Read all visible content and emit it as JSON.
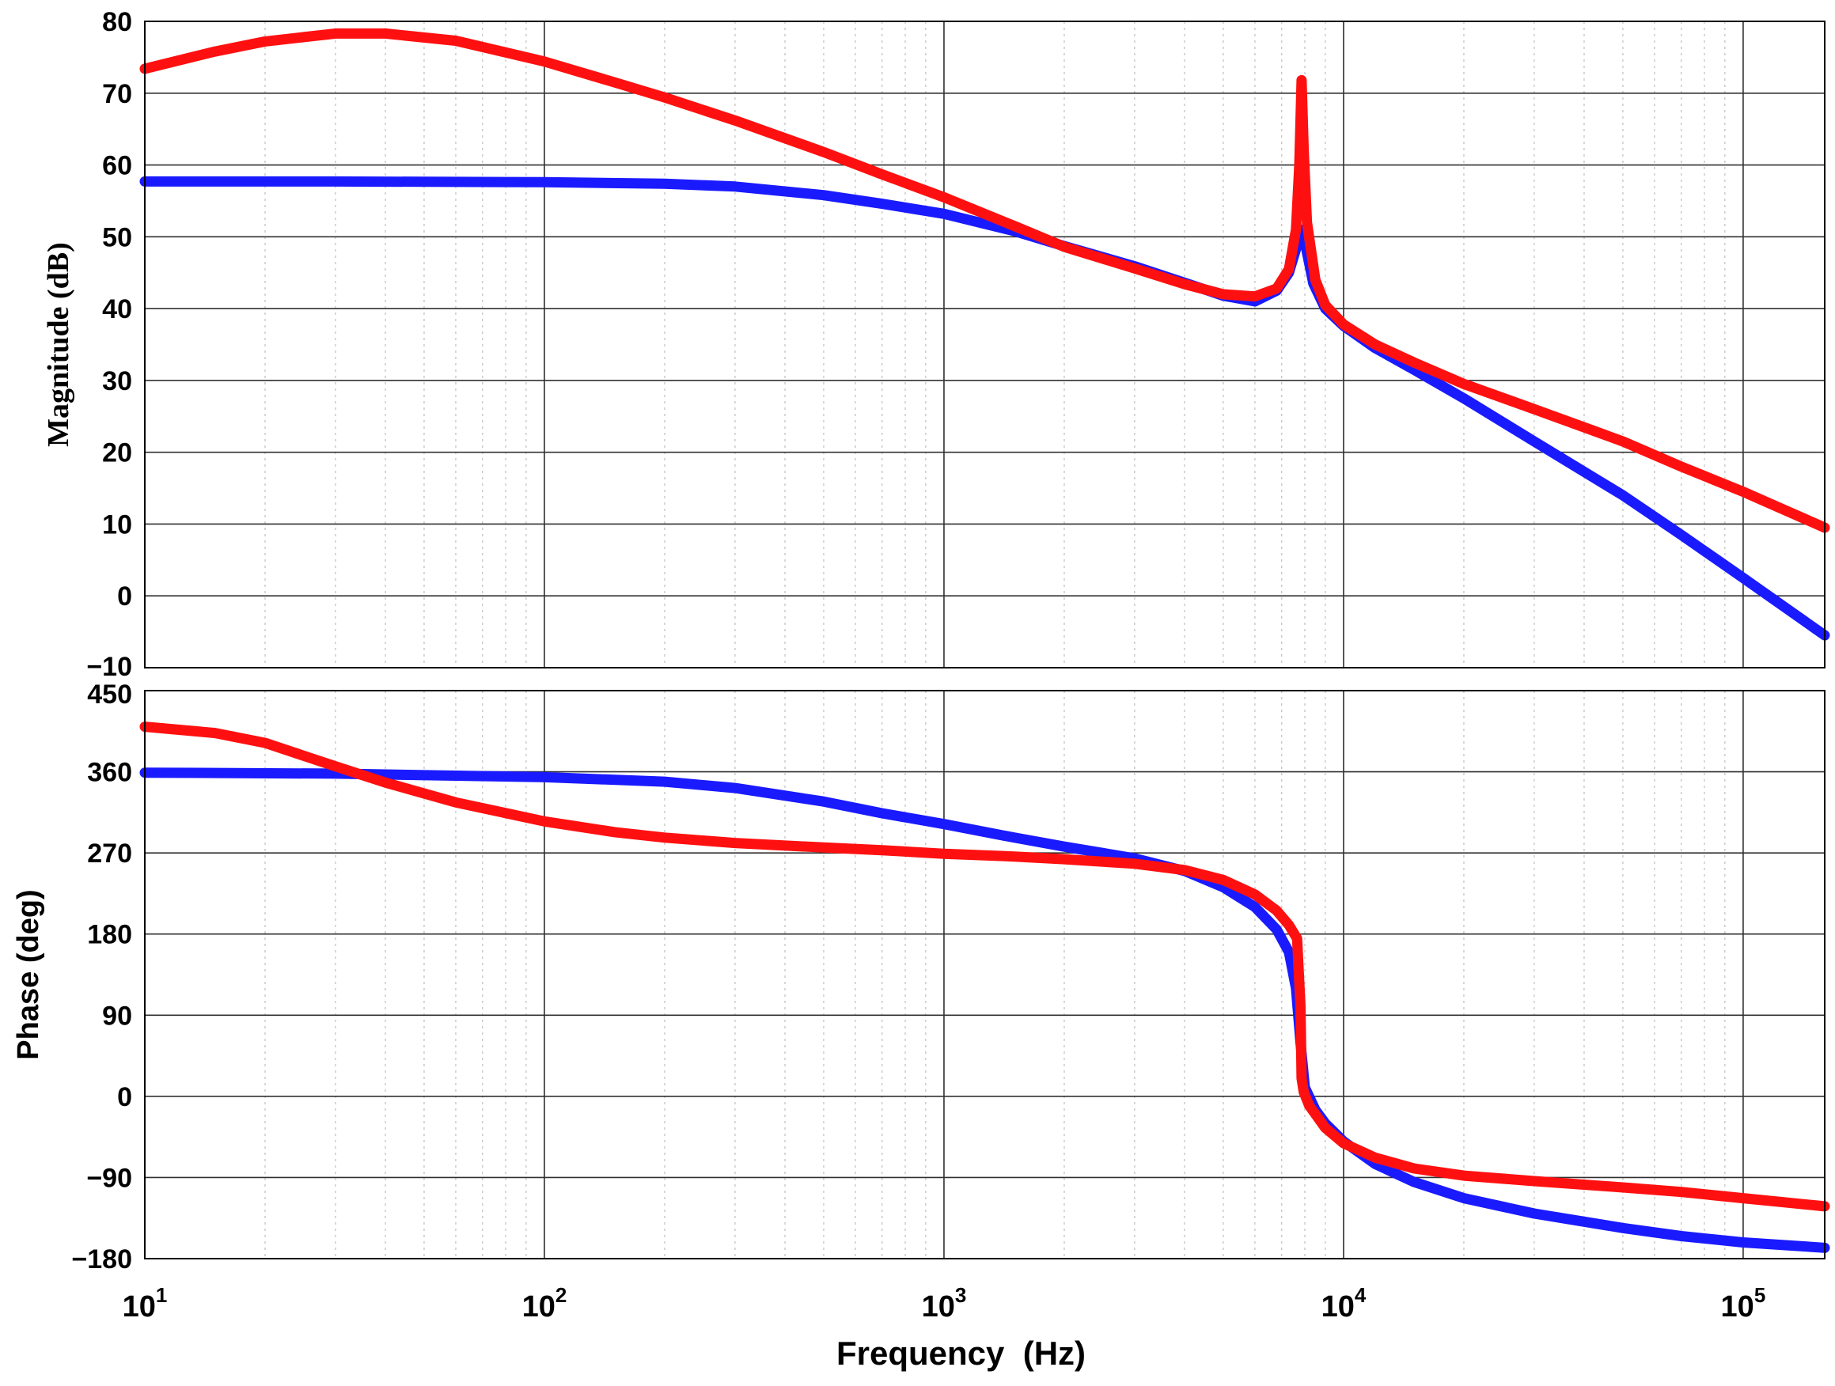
{
  "chart_data": [
    {
      "type": "line",
      "panel": "magnitude",
      "title": "",
      "xlabel": "",
      "ylabel": "Magnitude (dB)",
      "xscale": "log",
      "xlim": [
        10,
        160000
      ],
      "ylim": [
        -10,
        80
      ],
      "yticks": [
        "80",
        "70",
        "60",
        "50",
        "40",
        "30",
        "20",
        "10",
        "0",
        "−10"
      ],
      "ytick_values": [
        80,
        70,
        60,
        50,
        40,
        30,
        20,
        10,
        0,
        -10
      ],
      "grid": true,
      "series": [
        {
          "color": "#1a1aff",
          "points": [
            [
              10,
              57.7
            ],
            [
              30,
              57.7
            ],
            [
              100,
              57.6
            ],
            [
              200,
              57.4
            ],
            [
              300,
              57.0
            ],
            [
              500,
              55.8
            ],
            [
              700,
              54.6
            ],
            [
              1000,
              53.2
            ],
            [
              1500,
              50.8
            ],
            [
              2000,
              48.7
            ],
            [
              3000,
              45.9
            ],
            [
              4000,
              43.6
            ],
            [
              5000,
              41.8
            ],
            [
              6000,
              41.0
            ],
            [
              6800,
              42.5
            ],
            [
              7300,
              45.0
            ],
            [
              7650,
              48.8
            ],
            [
              7850,
              51.0
            ],
            [
              8050,
              48.5
            ],
            [
              8400,
              43.5
            ],
            [
              9000,
              40.0
            ],
            [
              10000,
              37.6
            ],
            [
              12000,
              34.5
            ],
            [
              15000,
              31.5
            ],
            [
              20000,
              27.5
            ],
            [
              30000,
              21.5
            ],
            [
              50000,
              14.0
            ],
            [
              70000,
              8.5
            ],
            [
              100000,
              2.5
            ],
            [
              160000,
              -5.5
            ]
          ]
        },
        {
          "color": "#ff1010",
          "points": [
            [
              10,
              73.4
            ],
            [
              15,
              75.8
            ],
            [
              20,
              77.2
            ],
            [
              30,
              78.3
            ],
            [
              40,
              78.3
            ],
            [
              60,
              77.3
            ],
            [
              100,
              74.4
            ],
            [
              150,
              71.5
            ],
            [
              200,
              69.4
            ],
            [
              300,
              66.2
            ],
            [
              500,
              61.8
            ],
            [
              700,
              58.7
            ],
            [
              1000,
              55.5
            ],
            [
              1500,
              51.5
            ],
            [
              2000,
              48.6
            ],
            [
              3000,
              45.6
            ],
            [
              4000,
              43.4
            ],
            [
              5000,
              42.0
            ],
            [
              6000,
              41.7
            ],
            [
              6800,
              42.8
            ],
            [
              7300,
              45.5
            ],
            [
              7600,
              51.0
            ],
            [
              7750,
              60.0
            ],
            [
              7850,
              71.8
            ],
            [
              7950,
              62.0
            ],
            [
              8100,
              52.0
            ],
            [
              8500,
              44.0
            ],
            [
              9000,
              40.5
            ],
            [
              10000,
              37.8
            ],
            [
              12000,
              35.0
            ],
            [
              15000,
              32.5
            ],
            [
              20000,
              29.5
            ],
            [
              30000,
              26.0
            ],
            [
              50000,
              21.5
            ],
            [
              70000,
              18.0
            ],
            [
              100000,
              14.5
            ],
            [
              160000,
              9.5
            ]
          ]
        }
      ]
    },
    {
      "type": "line",
      "panel": "phase",
      "title": "",
      "xlabel": "Frequency  (Hz)",
      "ylabel": "Phase (deg)",
      "xscale": "log",
      "xlim": [
        10,
        160000
      ],
      "ylim": [
        -180,
        450
      ],
      "yticks": [
        "450",
        "360",
        "270",
        "180",
        "90",
        "0",
        "−90",
        "−180"
      ],
      "ytick_values": [
        450,
        360,
        270,
        180,
        90,
        0,
        -90,
        -180
      ],
      "xticks": [
        {
          "base": "10",
          "exp": "1",
          "value": 10
        },
        {
          "base": "10",
          "exp": "2",
          "value": 100
        },
        {
          "base": "10",
          "exp": "3",
          "value": 1000
        },
        {
          "base": "10",
          "exp": "4",
          "value": 10000
        },
        {
          "base": "10",
          "exp": "5",
          "value": 100000
        }
      ],
      "grid": true,
      "series": [
        {
          "color": "#1a1aff",
          "points": [
            [
              10,
              359
            ],
            [
              30,
              358
            ],
            [
              100,
              354
            ],
            [
              200,
              349
            ],
            [
              300,
              342
            ],
            [
              500,
              327
            ],
            [
              700,
              314
            ],
            [
              1000,
              302
            ],
            [
              1500,
              287
            ],
            [
              2000,
              277
            ],
            [
              3000,
              264
            ],
            [
              4000,
              250
            ],
            [
              5000,
              232
            ],
            [
              6000,
              210
            ],
            [
              6800,
              185
            ],
            [
              7300,
              160
            ],
            [
              7600,
              120
            ],
            [
              7800,
              60
            ],
            [
              8000,
              10
            ],
            [
              8500,
              -15
            ],
            [
              9000,
              -30
            ],
            [
              10000,
              -50
            ],
            [
              12000,
              -75
            ],
            [
              15000,
              -95
            ],
            [
              20000,
              -113
            ],
            [
              30000,
              -130
            ],
            [
              50000,
              -146
            ],
            [
              70000,
              -155
            ],
            [
              100000,
              -162
            ],
            [
              160000,
              -168
            ]
          ]
        },
        {
          "color": "#ff1010",
          "points": [
            [
              10,
              410
            ],
            [
              15,
              403
            ],
            [
              20,
              392
            ],
            [
              30,
              366
            ],
            [
              40,
              348
            ],
            [
              60,
              326
            ],
            [
              100,
              305
            ],
            [
              150,
              293
            ],
            [
              200,
              287
            ],
            [
              300,
              281
            ],
            [
              500,
              276
            ],
            [
              700,
              273
            ],
            [
              1000,
              269
            ],
            [
              1500,
              266
            ],
            [
              2000,
              263
            ],
            [
              3000,
              258
            ],
            [
              4000,
              251
            ],
            [
              5000,
              240
            ],
            [
              6000,
              224
            ],
            [
              6800,
              206
            ],
            [
              7300,
              190
            ],
            [
              7650,
              175
            ],
            [
              7800,
              100
            ],
            [
              7850,
              20
            ],
            [
              7950,
              5
            ],
            [
              8200,
              -10
            ],
            [
              9000,
              -35
            ],
            [
              10000,
              -52
            ],
            [
              12000,
              -68
            ],
            [
              15000,
              -80
            ],
            [
              20000,
              -88
            ],
            [
              30000,
              -94
            ],
            [
              50000,
              -101
            ],
            [
              70000,
              -106
            ],
            [
              100000,
              -113
            ],
            [
              160000,
              -122
            ]
          ]
        }
      ]
    }
  ]
}
